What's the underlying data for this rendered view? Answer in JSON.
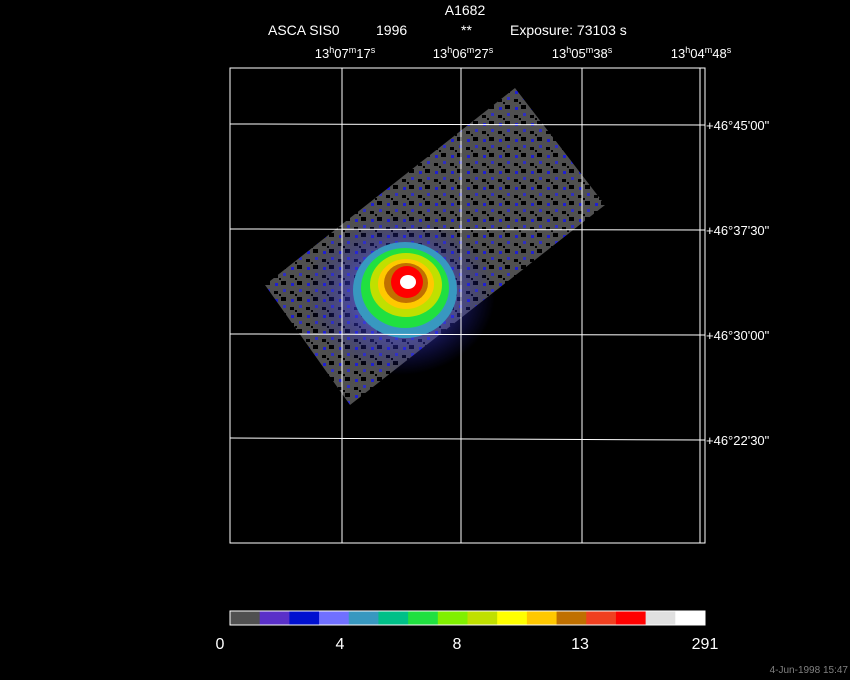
{
  "header": {
    "title": "A1682",
    "instrument": "ASCA SIS0",
    "year": "1996",
    "flag": "**",
    "exposure": "Exposure: 73103 s"
  },
  "ra_labels": [
    [
      "13",
      "h",
      "07",
      "m",
      "17",
      "s"
    ],
    [
      "13",
      "h",
      "06",
      "m",
      "27",
      "s"
    ],
    [
      "13",
      "h",
      "05",
      "m",
      "38",
      "s"
    ],
    [
      "13",
      "h",
      "04",
      "m",
      "48",
      "s"
    ]
  ],
  "dec_labels": [
    "+46°45'00\"",
    "+46°37'30\"",
    "+46°30'00\"",
    "+46°22'30\""
  ],
  "colorbar": {
    "colors": [
      "#505050",
      "#5a30c8",
      "#0010d0",
      "#7070ff",
      "#3898c0",
      "#00c088",
      "#20e040",
      "#80f000",
      "#c0e000",
      "#ffff00",
      "#ffc800",
      "#c07000",
      "#f04020",
      "#ff0000",
      "#e0e0e0",
      "#ffffff"
    ],
    "labels": [
      "0",
      "4",
      "8",
      "13",
      "291"
    ]
  },
  "timestamp": "4-Jun-1998 15:47"
}
